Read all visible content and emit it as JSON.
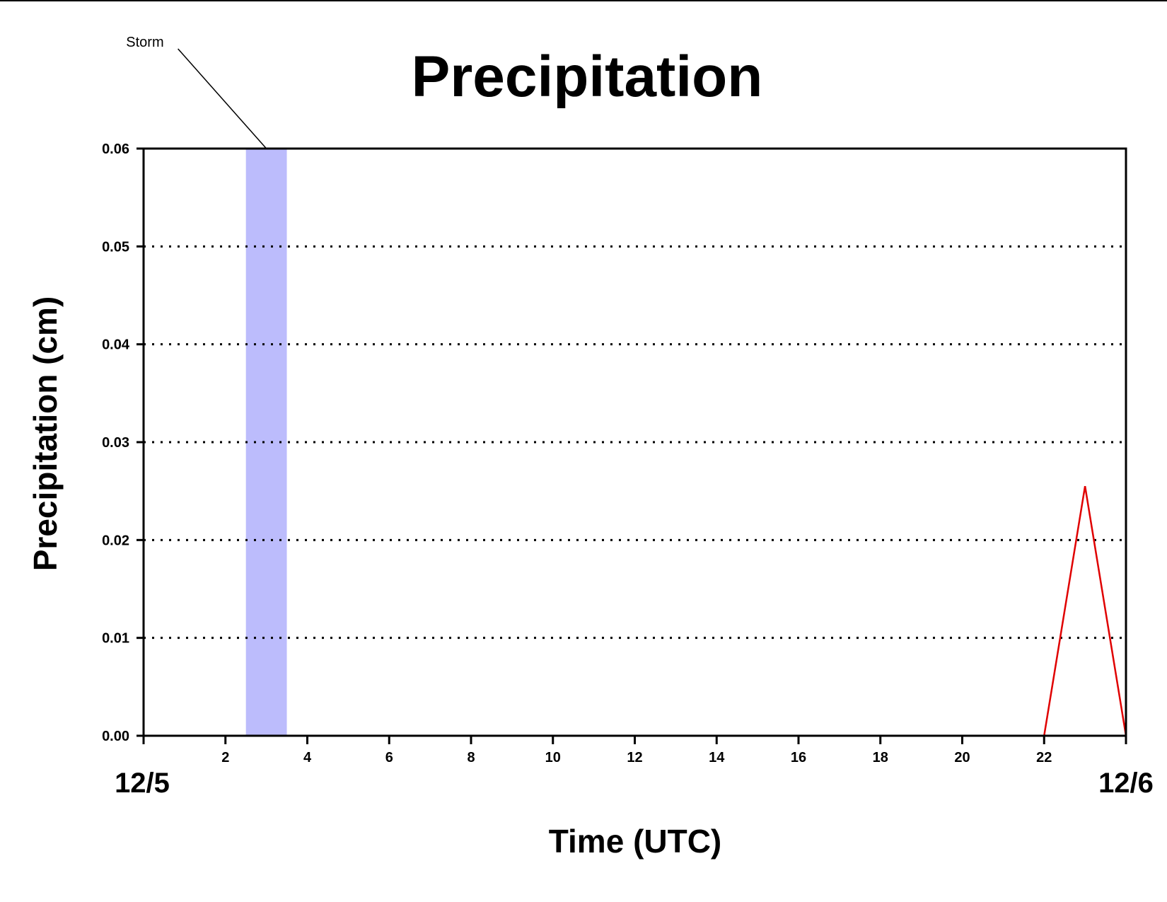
{
  "chart_data": {
    "type": "line",
    "title": "Precipitation",
    "xlabel": "Time (UTC)",
    "ylabel": "Precipitation (cm)",
    "xlim": [
      0,
      24
    ],
    "ylim": [
      0,
      0.06
    ],
    "x_ticks": [
      0,
      2,
      4,
      6,
      8,
      10,
      12,
      14,
      16,
      18,
      20,
      22,
      24
    ],
    "x_tick_labels": [
      "",
      "2",
      "4",
      "6",
      "8",
      "10",
      "12",
      "14",
      "16",
      "18",
      "20",
      "22",
      ""
    ],
    "y_ticks": [
      0.0,
      0.01,
      0.02,
      0.03,
      0.04,
      0.05,
      0.06
    ],
    "y_tick_labels": [
      "0.00",
      "0.01",
      "0.02",
      "0.03",
      "0.04",
      "0.05",
      "0.06"
    ],
    "date_labels": [
      {
        "x": 0,
        "label": "12/5"
      },
      {
        "x": 24,
        "label": "12/6"
      }
    ],
    "grid": "horizontal dotted",
    "series": [
      {
        "color": "#e00000",
        "x": [
          0,
          1,
          2,
          3,
          4,
          5,
          6,
          7,
          8,
          9,
          10,
          11,
          12,
          13,
          14,
          15,
          16,
          17,
          18,
          19,
          20,
          21,
          22,
          23,
          24
        ],
        "y": [
          0,
          0,
          0,
          0,
          0,
          0,
          0,
          0,
          0,
          0,
          0,
          0,
          0,
          0,
          0,
          0,
          0,
          0,
          0,
          0,
          0,
          0,
          0,
          0.0255,
          0
        ]
      }
    ],
    "shaded_regions": [
      {
        "x_start": 2.5,
        "x_end": 3.5,
        "color": "#bcbcfc",
        "label": "Storm"
      }
    ]
  }
}
